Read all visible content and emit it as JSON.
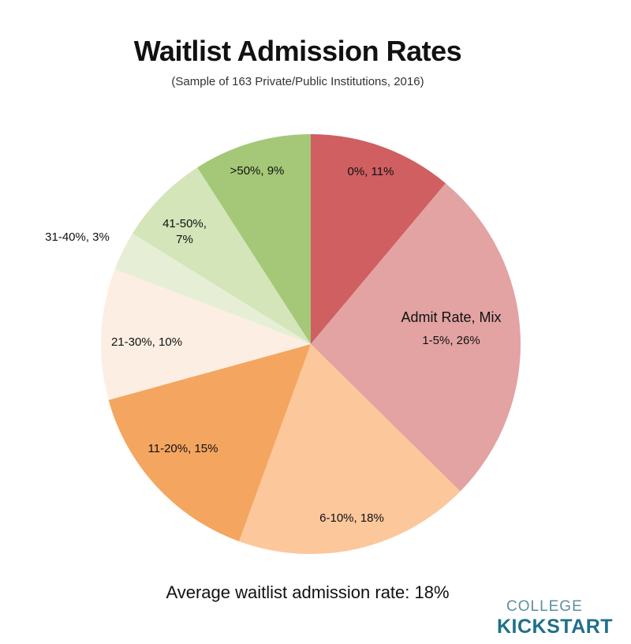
{
  "header": {
    "title": "Waitlist Admission Rates",
    "subtitle": "(Sample of 163 Private/Public Institutions, 2016)"
  },
  "footer": {
    "note": "Average waitlist admission rate: 18%",
    "logo_top": "COLLEGE",
    "logo_bottom": "KICKSTART"
  },
  "chart_data": {
    "type": "pie",
    "title": "Waitlist Admission Rates",
    "subtitle": "(Sample of 163 Private/Public Institutions, 2016)",
    "legend_title": "Admit Rate, Mix",
    "slices": [
      {
        "label": "0%, 11%",
        "category": "0%",
        "value": 11,
        "color": "#cf5f61"
      },
      {
        "label": "1-5%, 26%",
        "category": "1-5%",
        "value": 26,
        "color": "#e2a3a2"
      },
      {
        "label": "6-10%, 18%",
        "category": "6-10%",
        "value": 18,
        "color": "#fdc79c"
      },
      {
        "label": "11-20%, 15%",
        "category": "11-20%",
        "value": 15,
        "color": "#f4a55f"
      },
      {
        "label": "21-30%, 10%",
        "category": "21-30%",
        "value": 10,
        "color": "#fdeee3"
      },
      {
        "label": "31-40%, 3%",
        "category": "31-40%",
        "value": 3,
        "color": "#e6efd6"
      },
      {
        "label": "41-50%, 7%",
        "category": "41-50%",
        "value": 7,
        "color": "#d3e5b9"
      },
      {
        "label": ">50%, 9%",
        "category": ">50%",
        "value": 9,
        "color": "#a4c877"
      }
    ]
  }
}
